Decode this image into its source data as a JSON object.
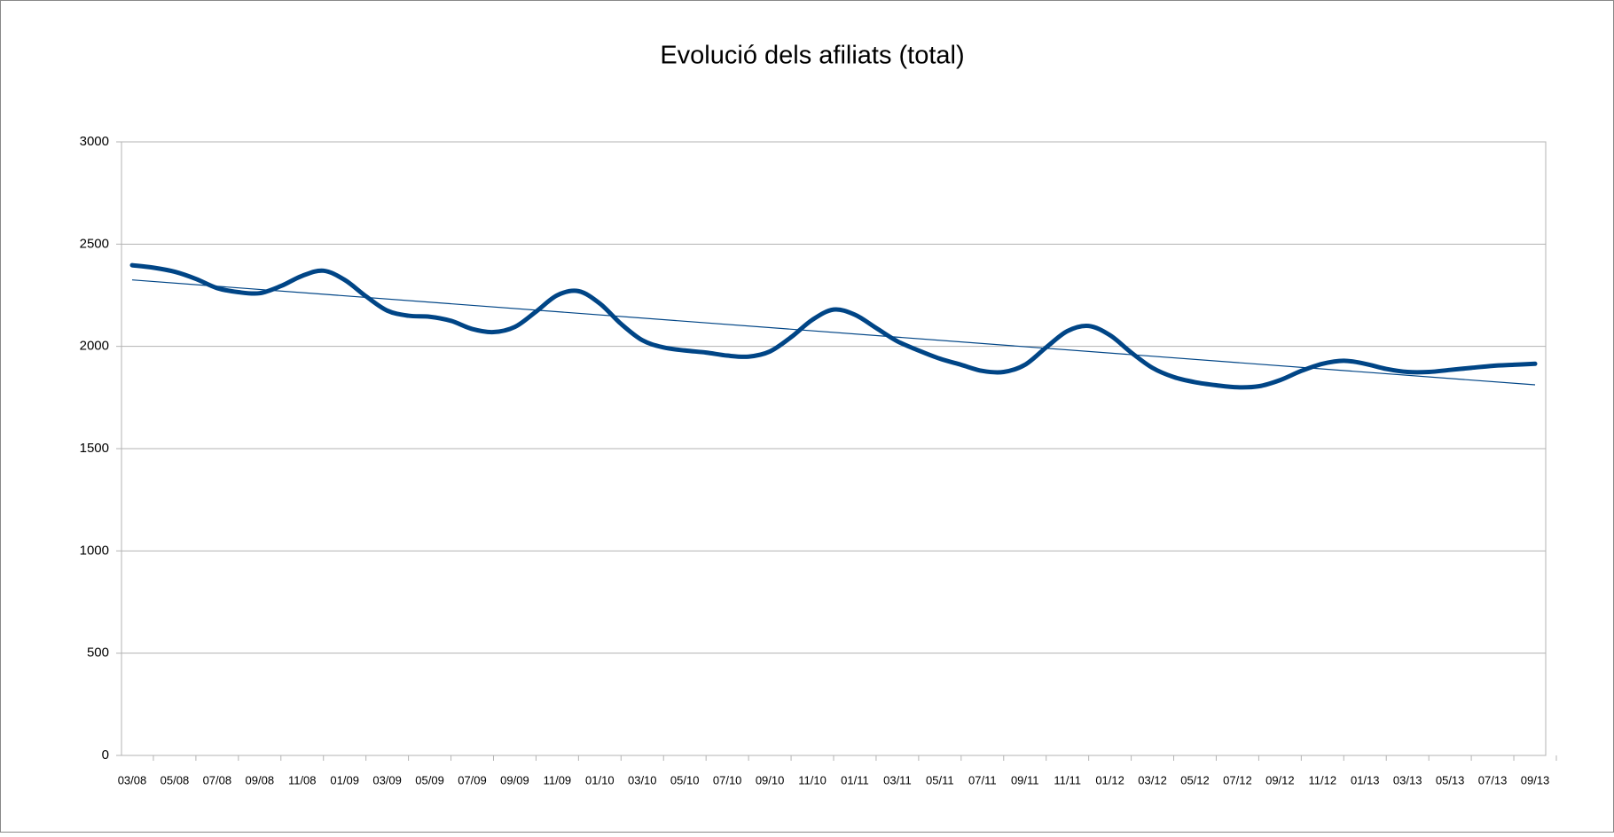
{
  "chart_data": {
    "type": "line",
    "title": "Evolució dels afiliats (total)",
    "categories": [
      "03/08",
      null,
      "05/08",
      null,
      "07/08",
      null,
      "09/08",
      null,
      "11/08",
      null,
      "01/09",
      null,
      "03/09",
      null,
      "05/09",
      null,
      "07/09",
      null,
      "09/09",
      null,
      "11/09",
      null,
      "01/10",
      null,
      "03/10",
      null,
      "05/10",
      null,
      "07/10",
      null,
      "09/10",
      null,
      "11/10",
      null,
      "01/11",
      null,
      "03/11",
      null,
      "05/11",
      null,
      "07/11",
      null,
      "09/11",
      null,
      "11/11",
      null,
      "01/12",
      null,
      "03/12",
      null,
      "05/12",
      null,
      "07/12",
      null,
      "09/12",
      null,
      "11/12",
      null,
      "01/13",
      null,
      "03/13",
      null,
      "05/13",
      null,
      "07/13",
      null,
      "09/13"
    ],
    "series": [
      {
        "color": "#004586",
        "values": [
          2397,
          2385,
          2365,
          2330,
          2285,
          2265,
          2260,
          2295,
          2345,
          2370,
          2325,
          2245,
          2175,
          2150,
          2145,
          2125,
          2085,
          2070,
          2095,
          2170,
          2250,
          2270,
          2210,
          2110,
          2030,
          1995,
          1980,
          1970,
          1955,
          1950,
          1975,
          2045,
          2130,
          2180,
          2155,
          2090,
          2025,
          1980,
          1940,
          1910,
          1880,
          1875,
          1910,
          1995,
          2075,
          2100,
          2055,
          1970,
          1895,
          1850,
          1825,
          1810,
          1800,
          1805,
          1835,
          1880,
          1915,
          1930,
          1915,
          1890,
          1875,
          1875,
          1885,
          1895,
          1905,
          1910,
          1915
        ]
      }
    ],
    "trend": {
      "color": "#004586",
      "values": [
        2325,
        1812
      ]
    },
    "ylim": [
      0,
      3000
    ],
    "yticks": [
      0,
      500,
      1000,
      1500,
      2000,
      2500,
      3000
    ],
    "grid": true
  }
}
